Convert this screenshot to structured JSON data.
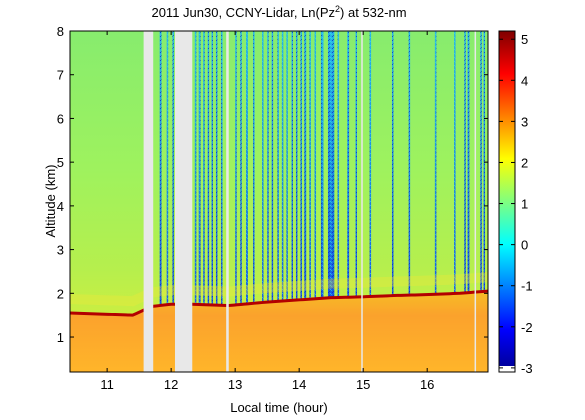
{
  "chart_data": {
    "type": "heatmap",
    "title": {
      "prefix": "2011 Jun30, CCNY-Lidar, Ln(Pz",
      "superscript": "2",
      "suffix": ") at 532-nm"
    },
    "xlabel": "Local time (hour)",
    "ylabel": "Altitude (km)",
    "xlim": [
      10.42,
      16.95
    ],
    "ylim": [
      0.2,
      8.0
    ],
    "x_ticks": [
      11,
      12,
      13,
      14,
      15,
      16
    ],
    "y_ticks": [
      1,
      2,
      3,
      4,
      5,
      6,
      7,
      8
    ],
    "colorbar": {
      "range": [
        -3.1,
        5.2
      ],
      "ticks": [
        -3,
        -2,
        -1,
        0,
        1,
        2,
        3,
        4,
        5
      ],
      "colormap": "jet"
    },
    "boundary_layer_top_km": [
      {
        "x": 10.42,
        "y": 1.55
      },
      {
        "x": 11.4,
        "y": 1.5
      },
      {
        "x": 11.7,
        "y": 1.7
      },
      {
        "x": 12.0,
        "y": 1.75
      },
      {
        "x": 12.3,
        "y": 1.75
      },
      {
        "x": 12.9,
        "y": 1.72
      },
      {
        "x": 13.5,
        "y": 1.8
      },
      {
        "x": 14.0,
        "y": 1.85
      },
      {
        "x": 14.5,
        "y": 1.9
      },
      {
        "x": 15.0,
        "y": 1.92
      },
      {
        "x": 15.5,
        "y": 1.95
      },
      {
        "x": 16.0,
        "y": 1.97
      },
      {
        "x": 16.5,
        "y": 2.0
      },
      {
        "x": 16.95,
        "y": 2.05
      }
    ],
    "data_gaps_hours": [
      [
        11.57,
        11.72
      ],
      [
        12.06,
        12.33
      ],
      [
        12.86,
        12.9
      ],
      [
        14.97,
        14.99
      ],
      [
        16.74,
        16.76
      ]
    ],
    "cloud_events_hours": [
      [
        11.82,
        11.85
      ],
      [
        11.93,
        11.95
      ],
      [
        12.02,
        12.04
      ],
      [
        12.37,
        12.39
      ],
      [
        12.43,
        12.46
      ],
      [
        12.5,
        12.52
      ],
      [
        12.57,
        12.58
      ],
      [
        12.63,
        12.65
      ],
      [
        12.7,
        12.72
      ],
      [
        12.78,
        12.8
      ],
      [
        13.0,
        13.02
      ],
      [
        13.08,
        13.1
      ],
      [
        13.17,
        13.2
      ],
      [
        13.28,
        13.3
      ],
      [
        13.42,
        13.44
      ],
      [
        13.5,
        13.52
      ],
      [
        13.57,
        13.59
      ],
      [
        13.66,
        13.67
      ],
      [
        13.73,
        13.75
      ],
      [
        13.8,
        13.82
      ],
      [
        13.88,
        13.9
      ],
      [
        13.95,
        13.97
      ],
      [
        14.02,
        14.04
      ],
      [
        14.08,
        14.11
      ],
      [
        14.16,
        14.18
      ],
      [
        14.24,
        14.26
      ],
      [
        14.34,
        14.38
      ],
      [
        14.45,
        14.55
      ],
      [
        14.6,
        14.62
      ],
      [
        14.75,
        14.78
      ],
      [
        14.88,
        14.9
      ],
      [
        15.1,
        15.12
      ],
      [
        15.45,
        15.47
      ],
      [
        15.71,
        15.73
      ],
      [
        16.12,
        16.13
      ],
      [
        16.42,
        16.43
      ],
      [
        16.58,
        16.6
      ],
      [
        16.63,
        16.66
      ],
      [
        16.83,
        16.85
      ],
      [
        16.88,
        16.9
      ]
    ]
  }
}
